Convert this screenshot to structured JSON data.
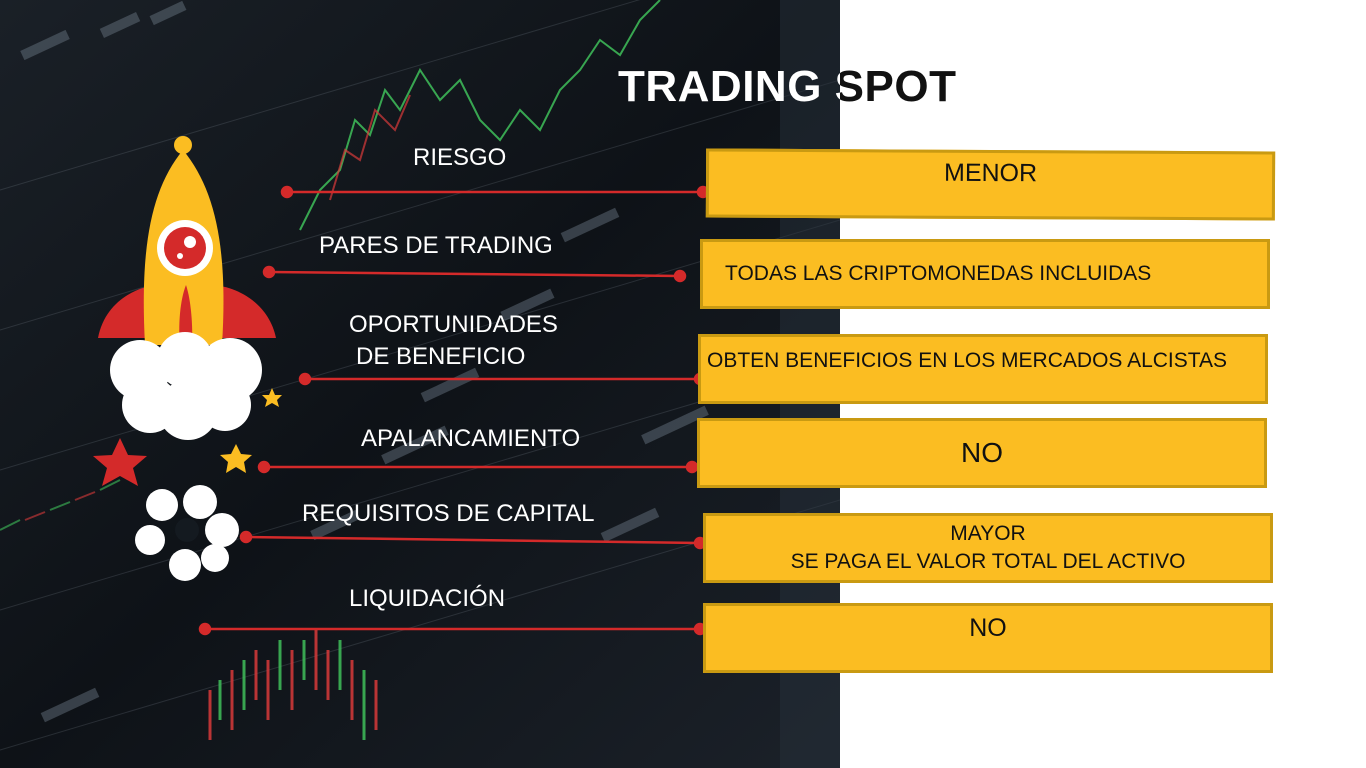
{
  "slide": {
    "title": "TRADING SPOT"
  },
  "rows": [
    {
      "label": "RIESGO",
      "value": "MENOR"
    },
    {
      "label": "PARES DE TRADING",
      "value": "TODAS LAS CRIPTOMONEDAS INCLUIDAS"
    },
    {
      "label_line1": "OPORTUNIDADES",
      "label_line2": "DE BENEFICIO",
      "value": "OBTEN BENEFICIOS EN LOS MERCADOS ALCISTAS"
    },
    {
      "label": "APALANCAMIENTO",
      "value": "NO"
    },
    {
      "label": "REQUISITOS DE CAPITAL",
      "value_line1": "MAYOR",
      "value_line2": "SE PAGA EL VALOR TOTAL DEL ACTIVO"
    },
    {
      "label": "LIQUIDACIÓN",
      "value": "NO"
    }
  ],
  "colors": {
    "box_fill": "#fbbd22",
    "box_border": "#c99a12",
    "connector": "#d42a2a",
    "background_dark": "#101418"
  },
  "icons": {
    "rocket": "rocket-icon",
    "stars": "star-icon"
  }
}
